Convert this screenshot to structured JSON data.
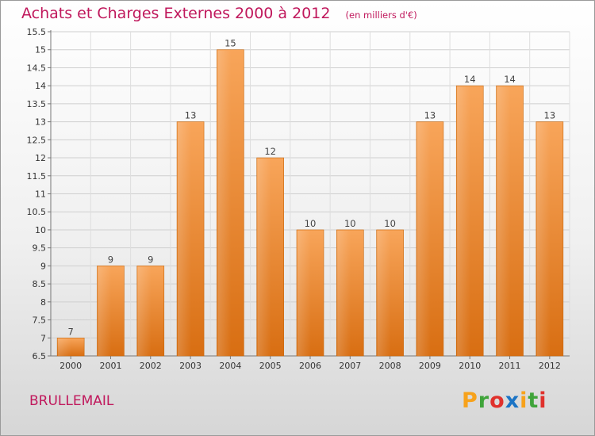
{
  "header": {
    "title": "Achats et Charges Externes 2000 à 2012",
    "subtitle": "(en milliers d'€)"
  },
  "footer": {
    "commune": "BRULLEMAIL",
    "logo_letters": [
      "P",
      "r",
      "o",
      "x",
      "i",
      "t",
      "i"
    ],
    "logo_colors": [
      "#f7a21b",
      "#3fa43a",
      "#e0312c",
      "#1b74c5",
      "#f7a21b",
      "#3fa43a",
      "#e0312c"
    ]
  },
  "chart_data": {
    "type": "bar",
    "title": "Achats et Charges Externes 2000 à 2012",
    "subtitle": "(en milliers d'€)",
    "categories": [
      "2000",
      "2001",
      "2002",
      "2003",
      "2004",
      "2005",
      "2006",
      "2007",
      "2008",
      "2009",
      "2010",
      "2011",
      "2012"
    ],
    "values": [
      7,
      9,
      9,
      13,
      15,
      12,
      10,
      10,
      10,
      13,
      14,
      14,
      13
    ],
    "ylim": [
      6.5,
      15.5
    ],
    "yticks": [
      "6.5",
      "7",
      "7.5",
      "8",
      "8.5",
      "9",
      "9.5",
      "10",
      "10.5",
      "11",
      "11.5",
      "12",
      "12.5",
      "13",
      "13.5",
      "14",
      "14.5",
      "15",
      "15.5"
    ],
    "grid": true,
    "legend": false,
    "bar_color": "#f0923a",
    "xlabel": "",
    "ylabel": ""
  }
}
